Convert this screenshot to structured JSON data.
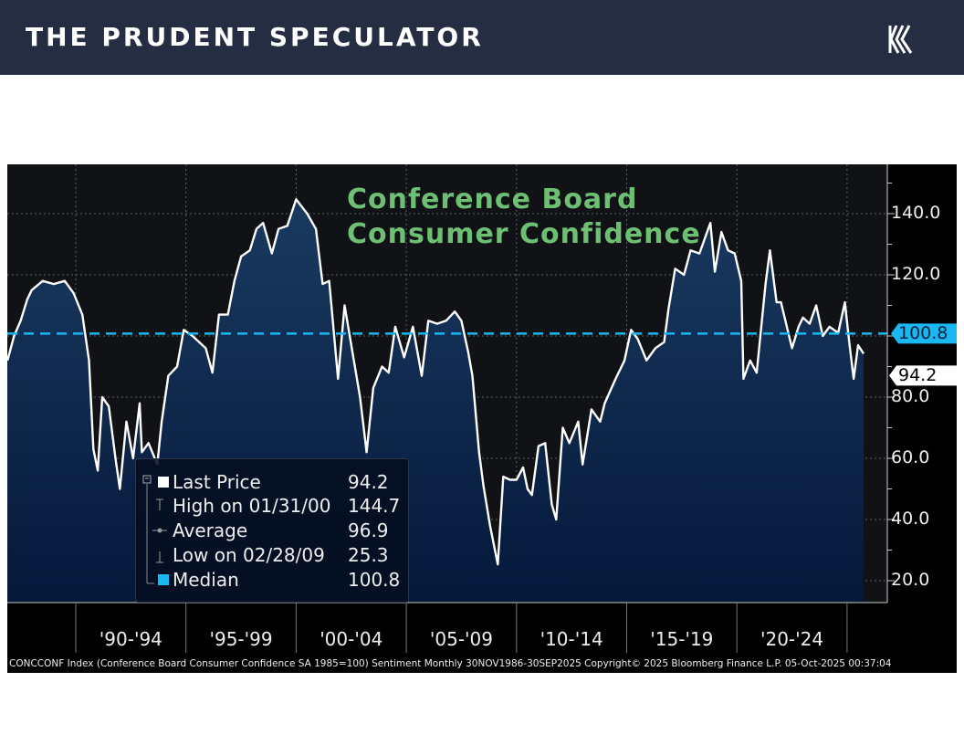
{
  "header": {
    "brand": "THE PRUDENT SPECULATOR",
    "logo_icon": "k-stripes-logo"
  },
  "chart_data": {
    "type": "area",
    "title": "Conference Board Consumer Confidence",
    "yticks": [
      "140.0",
      "120.0",
      "80.0",
      "60.0",
      "40.0",
      "20.0"
    ],
    "ytick_values": [
      140,
      120,
      80,
      60,
      40,
      20
    ],
    "ylim": [
      13,
      156
    ],
    "xlim": [
      "1986-11",
      "2025-12"
    ],
    "xticks": [
      "'90-'94",
      "'95-'99",
      "'00-'04",
      "'05-'09",
      "'10-'14",
      "'15-'19",
      "'20-'24"
    ],
    "grid": true,
    "colors": {
      "line": "#ffffff",
      "fill_top": "#1a3a60",
      "fill_bottom": "#04183a",
      "median": "#1ab8f0",
      "title": "#6dbf73"
    },
    "median": {
      "label": "100.8",
      "value": 100.8
    },
    "last": {
      "label": "94.2",
      "value": 94.2
    },
    "series": [
      {
        "x": [
          1986.9,
          1987.2,
          1987.5,
          1987.8,
          1988.0,
          1988.5,
          1989.0,
          1989.5,
          1989.9,
          1990.3,
          1990.6,
          1990.8,
          1991.0,
          1991.2,
          1991.5,
          1991.8,
          1992.0,
          1992.3,
          1992.6,
          1992.9,
          1993.0,
          1993.3,
          1993.7,
          1993.9,
          1994.2,
          1994.6,
          1994.9,
          1995.3,
          1995.6,
          1995.9,
          1996.2,
          1996.5,
          1996.9,
          1997.2,
          1997.5,
          1997.9,
          1998.2,
          1998.5,
          1998.9,
          1999.2,
          1999.6,
          2000.0,
          2000.5,
          2000.9,
          2001.2,
          2001.5,
          2001.9,
          2002.2,
          2002.5,
          2002.9,
          2003.2,
          2003.5,
          2003.9,
          2004.2,
          2004.5,
          2004.9,
          2005.3,
          2005.7,
          2006.0,
          2006.4,
          2006.8,
          2007.2,
          2007.5,
          2007.8,
          2008.0,
          2008.3,
          2008.5,
          2008.8,
          2009.15,
          2009.4,
          2009.7,
          2010.0,
          2010.3,
          2010.5,
          2010.7,
          2011.0,
          2011.3,
          2011.6,
          2011.8,
          2012.1,
          2012.4,
          2012.8,
          2013.0,
          2013.4,
          2013.8,
          2014.0,
          2014.5,
          2014.9,
          2015.2,
          2015.5,
          2015.9,
          2016.3,
          2016.7,
          2016.9,
          2017.2,
          2017.6,
          2017.9,
          2018.3,
          2018.8,
          2019.0,
          2019.3,
          2019.6,
          2019.9,
          2020.2,
          2020.3,
          2020.6,
          2020.9,
          2021.3,
          2021.5,
          2021.8,
          2022.0,
          2022.5,
          2022.8,
          2023.0,
          2023.3,
          2023.6,
          2023.9,
          2024.2,
          2024.6,
          2024.9,
          2025.1,
          2025.3,
          2025.5,
          2025.75
        ],
        "values": [
          92,
          100,
          105,
          112,
          115,
          118,
          117,
          118,
          114,
          107,
          92,
          63,
          56,
          80,
          77,
          60,
          50,
          72,
          60,
          78,
          62,
          65,
          58,
          72,
          87,
          90,
          102,
          100,
          98,
          96,
          88,
          107,
          107,
          118,
          126,
          128,
          135,
          137,
          127,
          135,
          136,
          144.7,
          140,
          135,
          117,
          118,
          86,
          110,
          97,
          80,
          62,
          83,
          90,
          88,
          103,
          93,
          103,
          87,
          105,
          104,
          105,
          108,
          105,
          95,
          87,
          62,
          51,
          38,
          25.3,
          54,
          53,
          53,
          57,
          50,
          48,
          64,
          65,
          45,
          40,
          70,
          65,
          72,
          58,
          76,
          72,
          78,
          86,
          92,
          102,
          99,
          92,
          96,
          98,
          109,
          122,
          120,
          128,
          127,
          137,
          121,
          134,
          128,
          127,
          118,
          86,
          92,
          88,
          117,
          128,
          111,
          111,
          96,
          103,
          106,
          104,
          110,
          100,
          103,
          101,
          111,
          98,
          86,
          97,
          94.2
        ]
      }
    ]
  },
  "legend": {
    "rows": [
      {
        "label": "Last Price",
        "value": "94.2"
      },
      {
        "label": "High on 01/31/00",
        "value": "144.7"
      },
      {
        "label": "Average",
        "value": "96.9"
      },
      {
        "label": "Low on 02/28/09",
        "value": "25.3"
      },
      {
        "label": "Median",
        "value": "100.8"
      }
    ]
  },
  "footer": "CONCCONF Index (Conference Board Consumer Confidence SA 1985=100) Sentiment Monthly 30NOV1986-30SEP2025 Copyright© 2025 Bloomberg Finance L.P. 05-Oct-2025 00:37:04"
}
